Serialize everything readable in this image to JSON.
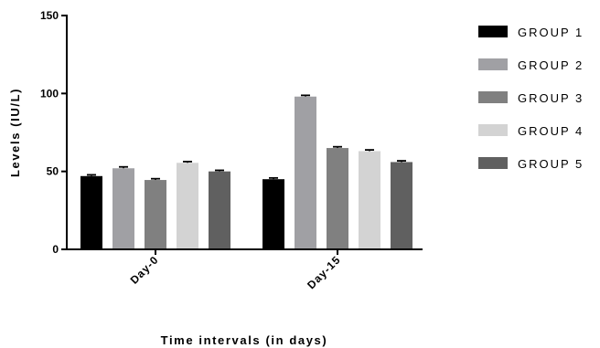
{
  "chart_data": {
    "type": "bar",
    "xlabel": "Time intervals (in days)",
    "ylabel": "Levels (IU/L)",
    "ylim": [
      0,
      150
    ],
    "yticks": [
      0,
      50,
      100,
      150
    ],
    "categories": [
      "Day-0",
      "Day-15"
    ],
    "legend_position": "right",
    "grid": false,
    "series": [
      {
        "name": "GROUP 1",
        "color": "#000000",
        "values": [
          47,
          45
        ],
        "errors": [
          0.8,
          0.8
        ]
      },
      {
        "name": "GROUP 2",
        "color": "#a0a0a4",
        "values": [
          52,
          98
        ],
        "errors": [
          0.9,
          0.8
        ]
      },
      {
        "name": "GROUP 3",
        "color": "#808080",
        "values": [
          44.5,
          65
        ],
        "errors": [
          0.8,
          0.8
        ]
      },
      {
        "name": "GROUP 4",
        "color": "#d3d3d3",
        "values": [
          55.5,
          63
        ],
        "errors": [
          0.8,
          0.8
        ]
      },
      {
        "name": "GROUP 5",
        "color": "#606060",
        "values": [
          50,
          56
        ],
        "errors": [
          0.7,
          0.8
        ]
      }
    ]
  }
}
